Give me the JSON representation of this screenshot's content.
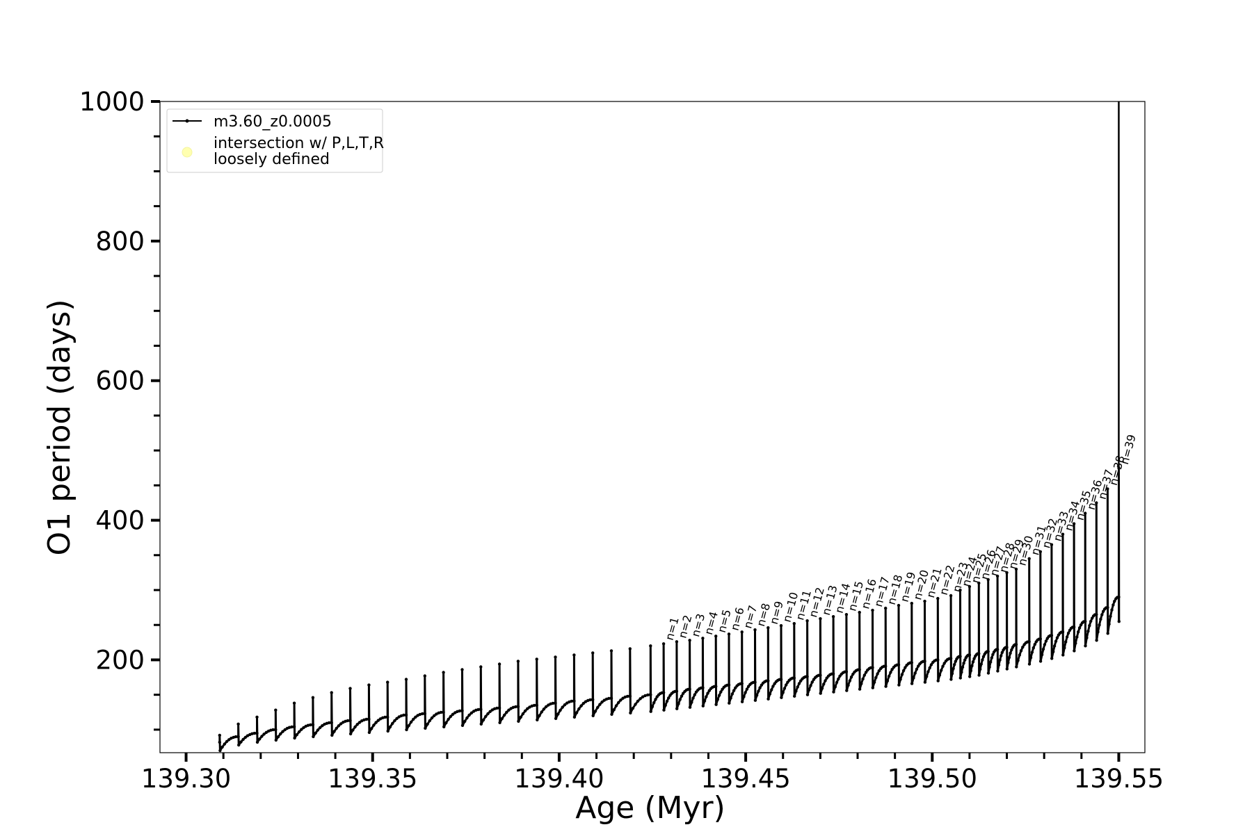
{
  "chart_data": {
    "type": "line",
    "title": "",
    "xlabel": "Age (Myr)",
    "ylabel": "O1 period (days)",
    "xlim": [
      139.293,
      139.557
    ],
    "ylim": [
      67,
      1000
    ],
    "xticks": [
      139.3,
      139.35,
      139.4,
      139.45,
      139.5,
      139.55
    ],
    "xtick_labels": [
      "139.30",
      "139.35",
      "139.40",
      "139.45",
      "139.50",
      "139.55"
    ],
    "xtick_minor_step": 0.01,
    "yticks": [
      200,
      400,
      600,
      800,
      1000
    ],
    "ytick_labels": [
      "200",
      "400",
      "600",
      "800",
      "1000"
    ],
    "ytick_minor_step": 50,
    "grid": false,
    "legend": {
      "position": "top-left",
      "entries": [
        {
          "label": "m3.60_z0.0005",
          "marker": "line-dot",
          "color": "#000000"
        },
        {
          "label_lines": [
            "intersection w/ P,L,T,R",
            "loosely defined"
          ],
          "marker": "circle",
          "color": "#ffffb0"
        }
      ]
    },
    "series": [
      {
        "name": "m3.60_z0.0005",
        "color": "#000000",
        "pulses": {
          "ages": [
            139.309,
            139.314,
            139.319,
            139.324,
            139.329,
            139.334,
            139.339,
            139.344,
            139.349,
            139.354,
            139.359,
            139.364,
            139.369,
            139.374,
            139.379,
            139.384,
            139.389,
            139.394,
            139.399,
            139.404,
            139.409,
            139.414,
            139.419,
            139.4245,
            139.428,
            139.4315,
            139.435,
            139.4385,
            139.442,
            139.4455,
            139.449,
            139.4525,
            139.456,
            139.4595,
            139.463,
            139.4665,
            139.47,
            139.4735,
            139.477,
            139.4805,
            139.484,
            139.4875,
            139.491,
            139.4945,
            139.498,
            139.5015,
            139.505,
            139.5075,
            139.51,
            139.5125,
            139.515,
            139.5175,
            139.52,
            139.5225,
            139.526,
            139.529,
            139.532,
            139.535,
            139.538,
            139.541,
            139.544,
            139.547,
            139.55
          ],
          "peak_periods": [
            92,
            108,
            118,
            128,
            138,
            146,
            153,
            159,
            164,
            168,
            172,
            177,
            182,
            186,
            190,
            194,
            198,
            201,
            204,
            207,
            210,
            213,
            216,
            220,
            223,
            226,
            228,
            231,
            234,
            237,
            240,
            243,
            246,
            249,
            252,
            256,
            259,
            262,
            265,
            268,
            271,
            274,
            278,
            281,
            284,
            288,
            292,
            300,
            305,
            310,
            315,
            320,
            325,
            330,
            345,
            355,
            365,
            380,
            395,
            410,
            425,
            445,
            475
          ],
          "base_periods": [
            82,
            90,
            95,
            100,
            104,
            107,
            110,
            113,
            115,
            118,
            121,
            123,
            125,
            127,
            129,
            131,
            133,
            135,
            138,
            141,
            143,
            145,
            148,
            150,
            153,
            155,
            158,
            160,
            162,
            164,
            166,
            168,
            170,
            172,
            174,
            176,
            178,
            180,
            183,
            186,
            189,
            191,
            193,
            196,
            198,
            200,
            202,
            205,
            207,
            209,
            212,
            215,
            218,
            222,
            226,
            230,
            235,
            240,
            247,
            255,
            265,
            275,
            290
          ],
          "dip_periods": [
            70,
            78,
            82,
            85,
            88,
            90,
            92,
            94,
            96,
            98,
            100,
            102,
            104,
            106,
            108,
            110,
            112,
            114,
            116,
            118,
            120,
            122,
            124,
            126,
            128,
            130,
            132,
            134,
            136,
            138,
            140,
            142,
            144,
            146,
            148,
            150,
            152,
            154,
            156,
            158,
            160,
            162,
            164,
            166,
            168,
            170,
            172,
            174,
            176,
            178,
            181,
            184,
            187,
            190,
            194,
            198,
            202,
            207,
            213,
            220,
            228,
            238,
            255
          ]
        },
        "final_spike": {
          "age": 139.55,
          "period_max": 1000
        }
      }
    ],
    "annotations": [
      "n=1",
      "n=2",
      "n=3",
      "n=4",
      "n=5",
      "n=6",
      "n=7",
      "n=8",
      "n=9",
      "n=10",
      "n=11",
      "n=12",
      "n=13",
      "n=14",
      "n=15",
      "n=16",
      "n=17",
      "n=18",
      "n=19",
      "n=20",
      "n=21",
      "n=22",
      "n=23",
      "n=24",
      "n=25",
      "n=26",
      "n=27",
      "n=28",
      "n=29",
      "n=30",
      "n=31",
      "n=32",
      "n=33",
      "n=34",
      "n=35",
      "n=36",
      "n=37",
      "n=38",
      "n=39"
    ],
    "annotation_start_index": 24
  }
}
